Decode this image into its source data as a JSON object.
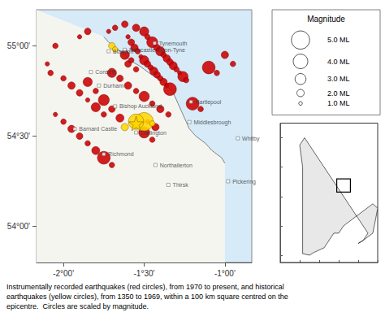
{
  "chart_data": [
    {
      "type": "scatter",
      "color": "#d6eaf8",
      "xlim": [
        -2.1667,
        -0.8333
      ],
      "ylim": [
        53.8,
        55.2
      ],
      "xticks": [
        {
          "value": -2.0,
          "label": "-2°00'"
        },
        {
          "value": -1.5,
          "label": "-1°30'"
        },
        {
          "value": -1.0,
          "label": "-1°00'"
        }
      ],
      "yticks": [
        {
          "value": 54.0,
          "label": "54°00'"
        },
        {
          "value": 54.5,
          "label": "54°30'"
        },
        {
          "value": 55.0,
          "label": "55°00'"
        }
      ],
      "grid": false,
      "caption": "Instrumentally recorded earthquakes (red circles), from 1970 to present, and historical\nearthquakes (yellow circles), from 1350 to 1969, within a 100 km square centred on the\nepicentre.  Circles are scaled by magnitude.",
      "series": [
        {
          "type": "area",
          "color": "#f5f5f0",
          "x": [
            -1.75,
            -1.72,
            -1.68,
            -1.63,
            -1.6,
            -1.57,
            -1.53,
            -1.5,
            -1.47,
            -1.44,
            -1.42,
            -1.4,
            -1.38,
            -1.37,
            -1.36,
            -1.35,
            -1.34,
            -1.33,
            -1.32,
            -1.31,
            -1.3,
            -1.29,
            -1.28,
            -1.27,
            -1.26,
            -1.25,
            -1.24,
            -1.23,
            -1.22,
            -1.2,
            -1.18,
            -1.15,
            -1.12,
            -1.1,
            -1.08,
            -1.05,
            -1.02,
            -1.0
          ],
          "y": [
            55.05,
            55.02,
            54.99,
            54.96,
            54.93,
            54.91,
            54.89,
            54.87,
            54.85,
            54.83,
            54.82,
            54.81,
            54.8,
            54.79,
            54.78,
            54.77,
            54.76,
            54.75,
            54.74,
            54.72,
            54.7,
            54.68,
            54.66,
            54.64,
            54.62,
            54.6,
            54.58,
            54.56,
            54.54,
            54.52,
            54.5,
            54.48,
            54.46,
            54.44,
            54.42,
            54.4,
            54.38,
            54.35
          ]
        },
        {
          "type": "line",
          "color": "gray",
          "x": [
            -1.75,
            -1.72,
            -1.68,
            -1.63,
            -1.6,
            -1.57,
            -1.53,
            -1.5,
            -1.47,
            -1.44,
            -1.42,
            -1.4,
            -1.38,
            -1.37,
            -1.36,
            -1.35,
            -1.34,
            -1.33,
            -1.32,
            -1.31,
            -1.3,
            -1.29,
            -1.28,
            -1.27,
            -1.26,
            -1.25,
            -1.24,
            -1.23,
            -1.22,
            -1.2,
            -1.18,
            -1.15,
            -1.12,
            -1.1,
            -1.08,
            -1.05,
            -1.02,
            -1.0
          ],
          "y": [
            55.05,
            55.02,
            54.99,
            54.96,
            54.93,
            54.91,
            54.89,
            54.87,
            54.85,
            54.83,
            54.82,
            54.81,
            54.8,
            54.79,
            54.78,
            54.77,
            54.76,
            54.75,
            54.74,
            54.72,
            54.7,
            54.68,
            54.66,
            54.64,
            54.62,
            54.6,
            54.58,
            54.56,
            54.54,
            54.52,
            54.5,
            54.48,
            54.46,
            54.44,
            54.42,
            54.4,
            54.38,
            54.35
          ]
        },
        {
          "type": "scatter",
          "marker": "circle",
          "color": "#cc0000",
          "x": [
            -2.05,
            -1.9,
            -1.85,
            -1.72,
            -1.68,
            -1.62,
            -1.55,
            -1.5,
            -1.48,
            -1.45,
            -1.42,
            -1.4,
            -1.38,
            -1.36,
            -1.34,
            -1.32,
            -1.3,
            -1.28,
            -1.26,
            -1.24,
            -1.6,
            -1.58,
            -1.56,
            -1.54,
            -1.52,
            -1.5,
            -1.48,
            -1.46,
            -1.44,
            -1.42,
            -1.4,
            -1.38,
            -1.36,
            -1.34,
            -1.85,
            -1.8,
            -1.75,
            -1.7,
            -1.65,
            -2.0,
            -1.95,
            -1.9,
            -1.85,
            -1.8,
            -1.75,
            -2.05,
            -2.0,
            -1.95,
            -1.9,
            -1.85,
            -1.8,
            -1.75,
            -1.7,
            -1.1,
            -1.05,
            -1.2,
            -1.15,
            -1.0,
            -0.95,
            -1.5,
            -1.45,
            -1.7,
            -1.65,
            -1.6,
            -1.55,
            -1.5,
            -1.45,
            -1.4,
            -1.35,
            -1.48,
            -1.43,
            -1.6,
            -1.55,
            -1.62,
            -1.58,
            -2.1,
            -2.08
          ],
          "y": [
            55.0,
            55.05,
            55.08,
            55.08,
            55.1,
            55.12,
            55.1,
            55.08,
            55.05,
            55.02,
            54.99,
            54.97,
            54.95,
            54.93,
            54.91,
            54.89,
            54.87,
            54.85,
            54.83,
            54.81,
            55.05,
            55.02,
            54.99,
            54.97,
            54.94,
            54.92,
            54.9,
            54.88,
            54.86,
            54.84,
            54.82,
            54.8,
            54.78,
            54.76,
            54.8,
            54.75,
            54.7,
            54.65,
            54.6,
            54.82,
            54.78,
            54.74,
            54.7,
            54.66,
            54.62,
            54.62,
            54.58,
            54.54,
            54.5,
            54.46,
            54.42,
            54.38,
            54.34,
            54.88,
            54.85,
            54.68,
            54.65,
            54.95,
            54.9,
            54.52,
            54.48,
            54.85,
            54.82,
            54.78,
            54.75,
            54.72,
            54.68,
            54.65,
            54.62,
            54.58,
            54.55,
            54.9,
            54.87,
            54.95,
            54.92,
            54.9,
            54.85
          ],
          "sizes": [
            1.5,
            1.2,
            1.8,
            1.2,
            1.5,
            1.8,
            2.0,
            2.5,
            1.5,
            3.0,
            1.8,
            2.5,
            1.5,
            2.0,
            1.8,
            2.2,
            1.5,
            1.2,
            2.8,
            1.5,
            1.2,
            1.8,
            2.0,
            1.5,
            1.2,
            2.5,
            1.8,
            1.5,
            2.2,
            1.8,
            1.5,
            2.0,
            1.2,
            3.5,
            2.5,
            1.5,
            3.0,
            1.8,
            2.2,
            1.5,
            2.0,
            1.8,
            1.2,
            2.5,
            1.5,
            1.2,
            1.5,
            2.0,
            1.8,
            1.5,
            2.2,
            3.5,
            1.5,
            3.5,
            1.5,
            3.5,
            1.5,
            2.0,
            1.5,
            3.0,
            1.5,
            2.5,
            1.8,
            2.0,
            1.5,
            2.8,
            1.5,
            2.0,
            1.5,
            1.2,
            2.0,
            1.8,
            1.5,
            2.5,
            1.5,
            1.2,
            1.5
          ]
        },
        {
          "type": "scatter",
          "marker": "circle",
          "color": "#FFD700",
          "x": [
            -1.7,
            -1.68,
            -1.5,
            -1.55,
            -1.45,
            -1.62
          ],
          "y": [
            55.0,
            54.98,
            54.58,
            54.58,
            54.57,
            54.55
          ],
          "sizes": [
            1.8,
            1.5,
            5.0,
            4.2,
            1.5,
            2.0
          ]
        },
        {
          "type": "scatter",
          "marker": "star",
          "color": "#FFD700",
          "x": [
            -1.55
          ],
          "y": [
            54.57
          ]
        }
      ],
      "annotations": [
        {
          "text": "Tynemouth",
          "x": -1.435,
          "y": 55.015
        },
        {
          "text": "Newcastle-Upon-Tyne",
          "x": -1.62,
          "y": 54.978
        },
        {
          "text": "Blaydon",
          "x": -1.72,
          "y": 54.97
        },
        {
          "text": "Consett",
          "x": -1.83,
          "y": 54.855
        },
        {
          "text": "Durham",
          "x": -1.78,
          "y": 54.78
        },
        {
          "text": "Bishop Auckland",
          "x": -1.68,
          "y": 54.665
        },
        {
          "text": "Hartlepool",
          "x": -1.21,
          "y": 54.69
        },
        {
          "text": "Middlesbrough",
          "x": -1.22,
          "y": 54.578
        },
        {
          "text": "Barnard Castle",
          "x": -1.93,
          "y": 54.54
        },
        {
          "text": "Darlington",
          "x": -1.55,
          "y": 54.52
        },
        {
          "text": "Whitby",
          "x": -0.92,
          "y": 54.488
        },
        {
          "text": "Richmond",
          "x": -1.75,
          "y": 54.4
        },
        {
          "text": "Northallerton",
          "x": -1.43,
          "y": 54.34
        },
        {
          "text": "Pickering",
          "x": -0.98,
          "y": 54.25
        },
        {
          "text": "Thirsk",
          "x": -1.35,
          "y": 54.23
        }
      ],
      "size_legend": {
        "title": "Magnitude",
        "values": [
          5.0,
          4.0,
          3.0,
          2.0,
          1.0
        ],
        "labels": [
          "5.0 ML",
          "4.0 ML",
          "3.0 ML",
          "2.0 ML",
          "1.0 ML"
        ]
      }
    },
    {
      "type": "area",
      "color": "#e8e8e8",
      "x": [
        -5.7,
        -5.0,
        -4.5,
        -3.5,
        -3.0,
        -2.5,
        -2.0,
        -1.5,
        -0.5,
        0.5,
        1.5,
        2.0,
        1.8,
        1.5,
        0.5,
        0.0,
        0.5,
        1.0,
        0.5,
        0.0,
        -0.5,
        -1.0,
        -1.5,
        -2.0,
        -2.5,
        -3.0,
        -3.5,
        -4.0,
        -4.5,
        -5.0,
        -5.5,
        -6.0,
        -5.7
      ],
      "y": [
        50.1,
        50.0,
        50.2,
        50.5,
        51.0,
        51.5,
        51.5,
        52.0,
        52.5,
        53.0,
        53.5,
        53.2,
        52.5,
        51.5,
        51.0,
        50.8,
        51.0,
        51.5,
        52.0,
        52.5,
        53.0,
        53.5,
        54.0,
        54.5,
        55.0,
        55.5,
        56.0,
        56.5,
        57.0,
        57.5,
        58.0,
        57.5,
        56.0
      ],
      "xlim": [
        -8,
        2
      ],
      "ylim": [
        49.5,
        59
      ],
      "xticks": [
        -6,
        -4,
        -2,
        0,
        2
      ],
      "yticks": [
        50,
        52,
        54,
        56,
        58
      ],
      "tick_labels": false,
      "rectangle": {
        "x": -2.2,
        "y": 54.3,
        "width": 1.4,
        "height": 0.9
      }
    }
  ]
}
